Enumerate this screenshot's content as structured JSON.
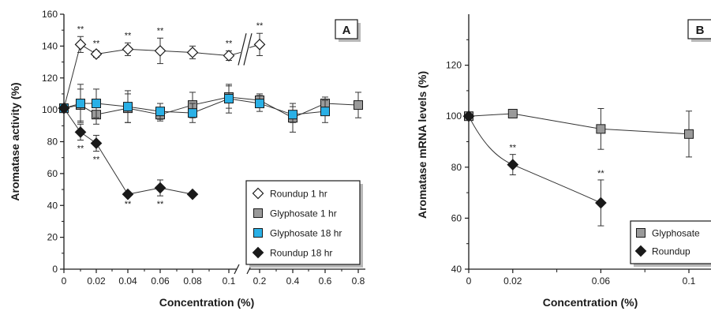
{
  "colors": {
    "roundup_1hr": "#ffffff",
    "glyphosate_1hr": "#9a9a9a",
    "glyphosate_18hr": "#2ab0e6",
    "roundup_18hr": "#1a1a1a",
    "axis": "#1a1a1a",
    "line": "#333333"
  },
  "chart_data": [
    {
      "panel": "A",
      "type": "line",
      "ylabel": "Aromatase activity (%)",
      "xlabel": "Concentration (%)",
      "ylim": [
        0,
        160
      ],
      "yticks": [
        "0",
        "20",
        "40",
        "60",
        "80",
        "100",
        "120",
        "140",
        "160"
      ],
      "axis_break": "between 0.1 and 0.2",
      "xticks": [
        "0",
        "0.02",
        "0.04",
        "0.06",
        "0.08",
        "0.1",
        "0.2",
        "0.4",
        "0.6",
        "0.8"
      ],
      "x_scale_note": "axis break between 0.1 and 0.2",
      "series": [
        {
          "name": "Roundup 1 hr",
          "marker": "diamond-open",
          "points": [
            {
              "x": "0",
              "y": 101,
              "err": 2
            },
            {
              "x": "0.01",
              "y": 141,
              "err": 5,
              "sig": "**"
            },
            {
              "x": "0.02",
              "y": 135,
              "err": 2,
              "sig": "**"
            },
            {
              "x": "0.04",
              "y": 138,
              "err": 4,
              "sig": "**"
            },
            {
              "x": "0.06",
              "y": 137,
              "err": 8,
              "sig": "**"
            },
            {
              "x": "0.08",
              "y": 136,
              "err": 4
            },
            {
              "x": "0.1",
              "y": 134,
              "err": 3,
              "sig": "**"
            },
            {
              "x": "0.2",
              "y": 141,
              "err": 7,
              "sig": "**"
            }
          ]
        },
        {
          "name": "Glyphosate 1 hr",
          "marker": "square-gray",
          "points": [
            {
              "x": "0",
              "y": 101,
              "err": 2
            },
            {
              "x": "0.01",
              "y": 103,
              "err": 10
            },
            {
              "x": "0.02",
              "y": 97,
              "err": 6
            },
            {
              "x": "0.04",
              "y": 101,
              "err": 9
            },
            {
              "x": "0.06",
              "y": 97,
              "err": 4
            },
            {
              "x": "0.08",
              "y": 103,
              "err": 8
            },
            {
              "x": "0.1",
              "y": 108,
              "err": 7
            },
            {
              "x": "0.2",
              "y": 106,
              "err": 4
            },
            {
              "x": "0.4",
              "y": 95,
              "err": 9
            },
            {
              "x": "0.6",
              "y": 104,
              "err": 4
            },
            {
              "x": "0.8",
              "y": 103,
              "err": 8
            }
          ]
        },
        {
          "name": "Glyphosate 18 hr",
          "marker": "square-blue",
          "points": [
            {
              "x": "0",
              "y": 101,
              "err": 2
            },
            {
              "x": "0.01",
              "y": 104,
              "err": 12
            },
            {
              "x": "0.02",
              "y": 104,
              "err": 9
            },
            {
              "x": "0.04",
              "y": 102,
              "err": 10
            },
            {
              "x": "0.06",
              "y": 99,
              "err": 5
            },
            {
              "x": "0.08",
              "y": 98,
              "err": 6
            },
            {
              "x": "0.1",
              "y": 107,
              "err": 9
            },
            {
              "x": "0.2",
              "y": 104,
              "err": 5
            },
            {
              "x": "0.4",
              "y": 97,
              "err": 5
            },
            {
              "x": "0.6",
              "y": 99,
              "err": 7
            }
          ]
        },
        {
          "name": "Roundup 18 hr",
          "marker": "diamond-black",
          "points": [
            {
              "x": "0",
              "y": 101,
              "err": 2
            },
            {
              "x": "0.01",
              "y": 86,
              "err": 5,
              "sig": "**"
            },
            {
              "x": "0.02",
              "y": 79,
              "err": 5,
              "sig": "**"
            },
            {
              "x": "0.04",
              "y": 47,
              "err": 1,
              "sig": "**"
            },
            {
              "x": "0.06",
              "y": 51,
              "err": 5,
              "sig": "**"
            },
            {
              "x": "0.08",
              "y": 47,
              "err": 1
            }
          ]
        }
      ]
    },
    {
      "panel": "B",
      "type": "line",
      "ylabel": "Aromatase mRNA levels (%)",
      "xlabel": "Concentration (%)",
      "ylim": [
        40,
        140
      ],
      "yticks": [
        "40",
        "60",
        "80",
        "100",
        "120"
      ],
      "xticks": [
        "0",
        "0.02",
        "0.06",
        "0.1"
      ],
      "series": [
        {
          "name": "Glyphosate",
          "marker": "square-gray",
          "points": [
            {
              "x": 0,
              "y": 100,
              "err": 1
            },
            {
              "x": 0.02,
              "y": 101,
              "err": 1
            },
            {
              "x": 0.06,
              "y": 95,
              "err": 8
            },
            {
              "x": 0.1,
              "y": 93,
              "err": 9
            }
          ]
        },
        {
          "name": "Roundup",
          "marker": "diamond-black",
          "points": [
            {
              "x": 0,
              "y": 100,
              "err": 1
            },
            {
              "x": 0.02,
              "y": 81,
              "err": 4,
              "sig": "**"
            },
            {
              "x": 0.06,
              "y": 66,
              "err": 9,
              "sig": "**"
            }
          ]
        }
      ]
    }
  ]
}
